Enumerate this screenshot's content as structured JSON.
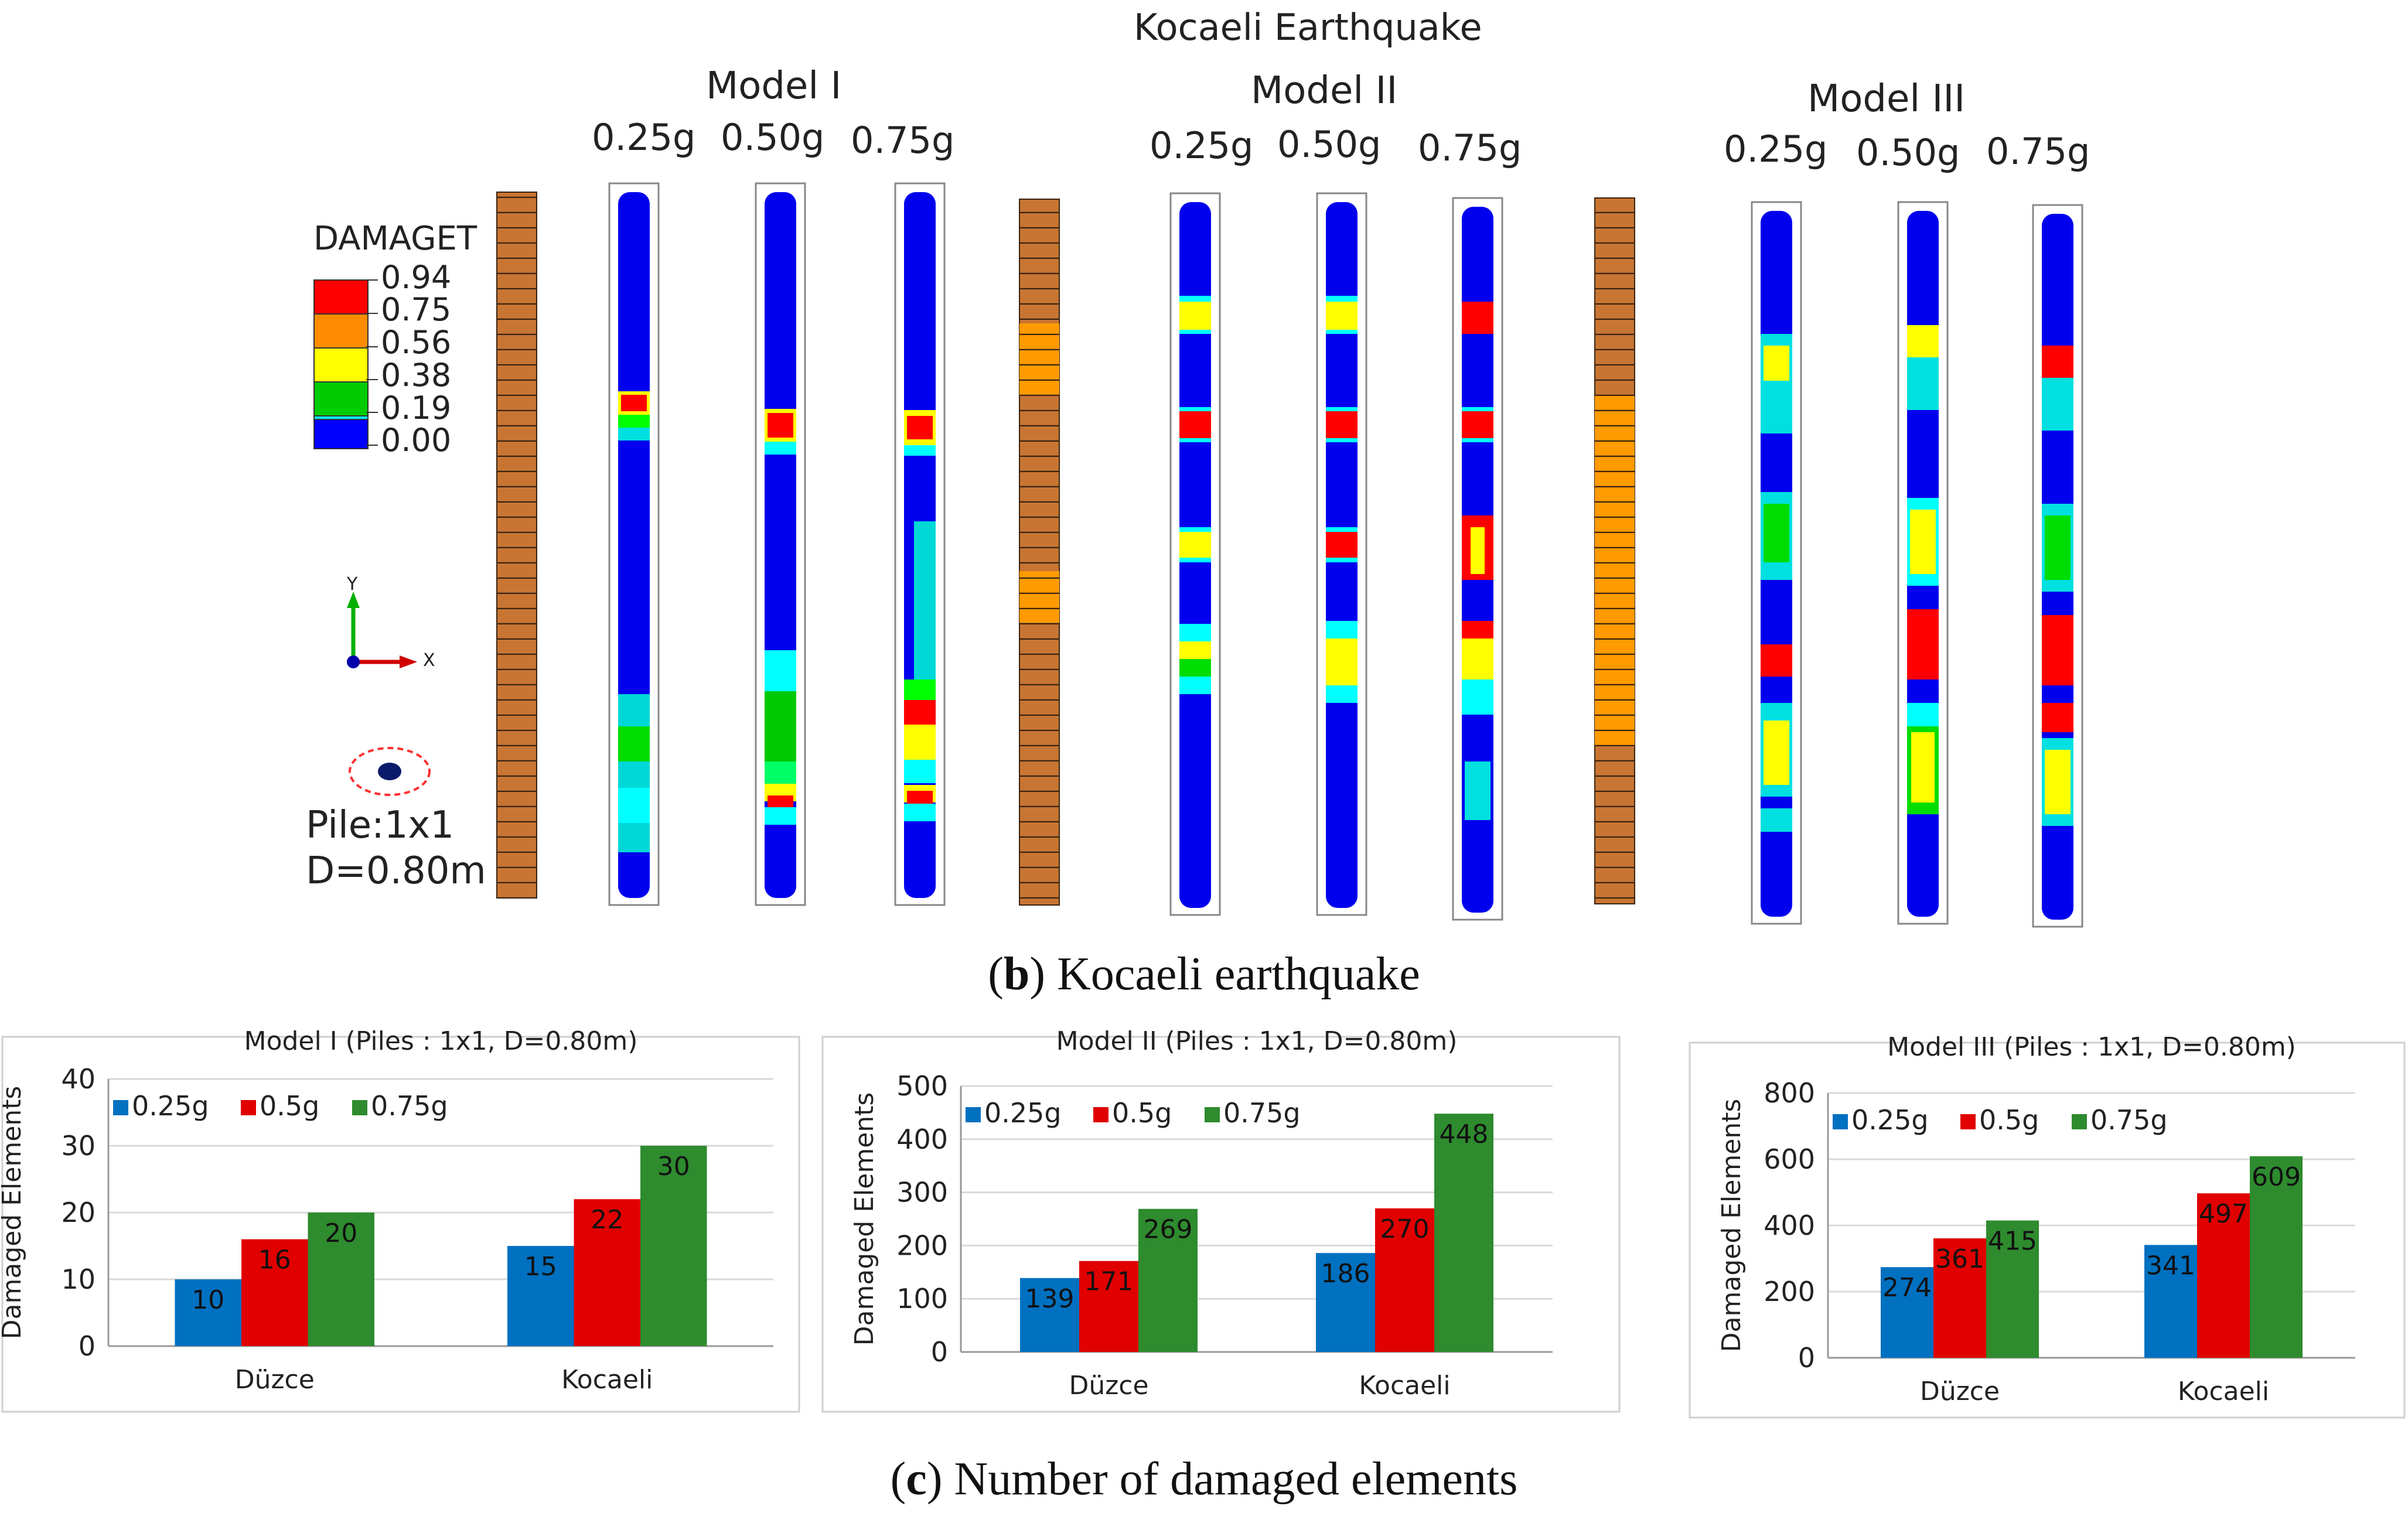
{
  "figure": {
    "title": "Kocaeli Earthquake",
    "models": [
      {
        "name": "Model I",
        "levels": [
          "0.25g",
          "0.50g",
          "0.75g"
        ]
      },
      {
        "name": "Model II",
        "levels": [
          "0.25g",
          "0.50g",
          "0.75g"
        ]
      },
      {
        "name": "Model III",
        "levels": [
          "0.25g",
          "0.50g",
          "0.75g"
        ]
      }
    ],
    "legend": {
      "title": "DAMAGET",
      "values": [
        "0.94",
        "0.75",
        "0.56",
        "0.38",
        "0.19",
        "0.00"
      ],
      "colors": [
        "#ff0000",
        "#00ff00",
        "#ffff00",
        "#00cc00",
        "#00ffff",
        "#0000ff"
      ]
    },
    "axis_labels": {
      "y": "Y",
      "x": "X"
    },
    "pile_info": {
      "line1": "Pile:1x1",
      "line2": "D=0.80m"
    },
    "caption_b": {
      "letter": "b",
      "text": ") Kocaeli earthquake"
    },
    "caption_c": {
      "letter": "c",
      "text": ") Number of damaged elements"
    }
  },
  "chart_data": [
    {
      "type": "bar",
      "title": "Model I (Piles : 1x1, D=0.80m)",
      "ylabel": "Damaged Elements",
      "categories": [
        "Düzce",
        "Kocaeli"
      ],
      "ylim": [
        0,
        40
      ],
      "yticks": [
        0,
        10,
        20,
        30,
        40
      ],
      "series": [
        {
          "name": "0.25g",
          "color": "#0070c0",
          "values": [
            10,
            15
          ]
        },
        {
          "name": "0.5g",
          "color": "#e00000",
          "values": [
            16,
            22
          ]
        },
        {
          "name": "0.75g",
          "color": "#2e8b2e",
          "values": [
            20,
            30
          ]
        }
      ]
    },
    {
      "type": "bar",
      "title": "Model II (Piles : 1x1, D=0.80m)",
      "ylabel": "Damaged Elements",
      "categories": [
        "Düzce",
        "Kocaeli"
      ],
      "ylim": [
        0,
        500
      ],
      "yticks": [
        0,
        100,
        200,
        300,
        400,
        500
      ],
      "series": [
        {
          "name": "0.25g",
          "color": "#0070c0",
          "values": [
            139,
            186
          ]
        },
        {
          "name": "0.5g",
          "color": "#e00000",
          "values": [
            171,
            270
          ]
        },
        {
          "name": "0.75g",
          "color": "#2e8b2e",
          "values": [
            269,
            448
          ]
        }
      ]
    },
    {
      "type": "bar",
      "title": "Model III (Piles : 1x1, D=0.80m)",
      "ylabel": "Damaged Elements",
      "categories": [
        "Düzce",
        "Kocaeli"
      ],
      "ylim": [
        0,
        800
      ],
      "yticks": [
        0,
        200,
        400,
        600,
        800
      ],
      "series": [
        {
          "name": "0.25g",
          "color": "#0070c0",
          "values": [
            274,
            341
          ]
        },
        {
          "name": "0.5g",
          "color": "#e00000",
          "values": [
            361,
            497
          ]
        },
        {
          "name": "0.75g",
          "color": "#2e8b2e",
          "values": [
            415,
            609
          ]
        }
      ]
    }
  ]
}
